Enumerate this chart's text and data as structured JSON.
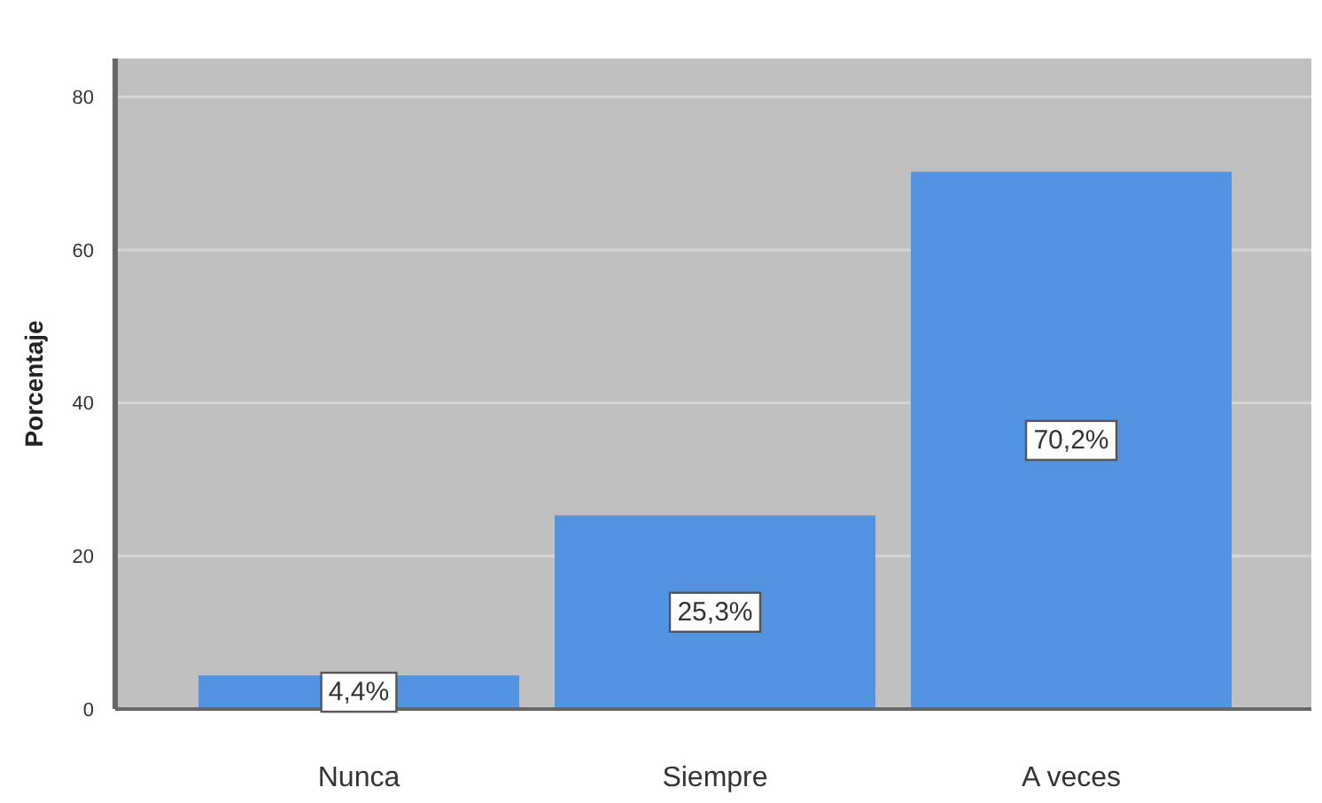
{
  "chart_data": {
    "type": "bar",
    "ylabel": "Porcentaje",
    "categories": [
      "Nunca",
      "Siempre",
      "A veces"
    ],
    "values": [
      4.4,
      25.3,
      70.2
    ],
    "color": "#5294e2",
    "value_labels": [
      "4,4%",
      "25,3%",
      "70,2%"
    ],
    "ylim": [
      0,
      85
    ],
    "yticks": [
      0,
      20,
      40,
      60,
      80
    ],
    "grid": "y"
  }
}
